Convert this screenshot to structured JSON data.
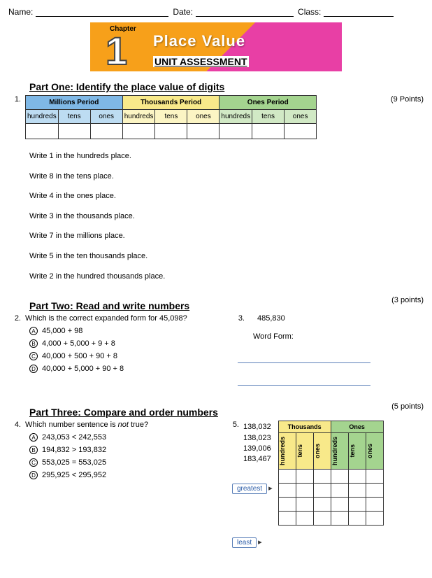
{
  "header": {
    "name_label": "Name:",
    "date_label": "Date:",
    "class_label": "Class:"
  },
  "banner": {
    "chapter": "Chapter",
    "number": "1",
    "title": "Place Value",
    "subtitle": "UNIT ASSESSMENT"
  },
  "part1": {
    "title": "Part One: Identify the place value of digits",
    "qnum": "1.",
    "points": "(9 Points)",
    "periods": [
      {
        "label": "Millions Period",
        "header_bg": "#7fb8e6",
        "sub_bg": "#bddcf2"
      },
      {
        "label": "Thousands Period",
        "header_bg": "#f8e98a",
        "sub_bg": "#fcf5c4"
      },
      {
        "label": "Ones Period",
        "header_bg": "#a4d48f",
        "sub_bg": "#d1e9c5"
      }
    ],
    "sub_labels": [
      "hundreds",
      "tens",
      "ones"
    ],
    "instructions": [
      "Write 1 in the hundreds place.",
      "Write 8 in the tens place.",
      "Write 4 in the ones place.",
      "Write 3 in the thousands place.",
      "Write 7 in the millions place.",
      "Write 5 in the ten thousands place.",
      "Write 2 in the hundred thousands place."
    ]
  },
  "part2": {
    "title": "Part Two: Read and write numbers",
    "points": "(3 points)",
    "q2": {
      "num": "2.",
      "text": "Which is the correct expanded form for 45,098?",
      "opts": [
        {
          "k": "A",
          "t": "45,000 + 98"
        },
        {
          "k": "B",
          "t": "4,000 + 5,000 + 9 + 8"
        },
        {
          "k": "C",
          "t": "40,000 + 500 + 90 + 8"
        },
        {
          "k": "D",
          "t": "40,000 + 5,000 + 90 + 8"
        }
      ]
    },
    "q3": {
      "num": "3.",
      "value": "485,830",
      "label": "Word Form:"
    }
  },
  "part3": {
    "title": "Part Three: Compare and order numbers",
    "points": "(5 points)",
    "q4": {
      "num": "4.",
      "text": "Which number sentence is not true?",
      "not_word": "not",
      "opts": [
        {
          "k": "A",
          "t": "243,053 < 242,553"
        },
        {
          "k": "B",
          "t": "194,832 > 193,832"
        },
        {
          "k": "C",
          "t": "553,025 = 553,025"
        },
        {
          "k": "D",
          "t": "295,925 < 295,952"
        }
      ]
    },
    "q5": {
      "num": "5.",
      "numbers": [
        "138,032",
        "138,023",
        "139,006",
        "183,467"
      ],
      "periods": [
        "Thousands",
        "Ones"
      ],
      "subs": [
        "hundreds",
        "tens",
        "ones",
        "hundreds",
        "tens",
        "ones"
      ],
      "greatest": "greatest",
      "least": "least"
    }
  }
}
